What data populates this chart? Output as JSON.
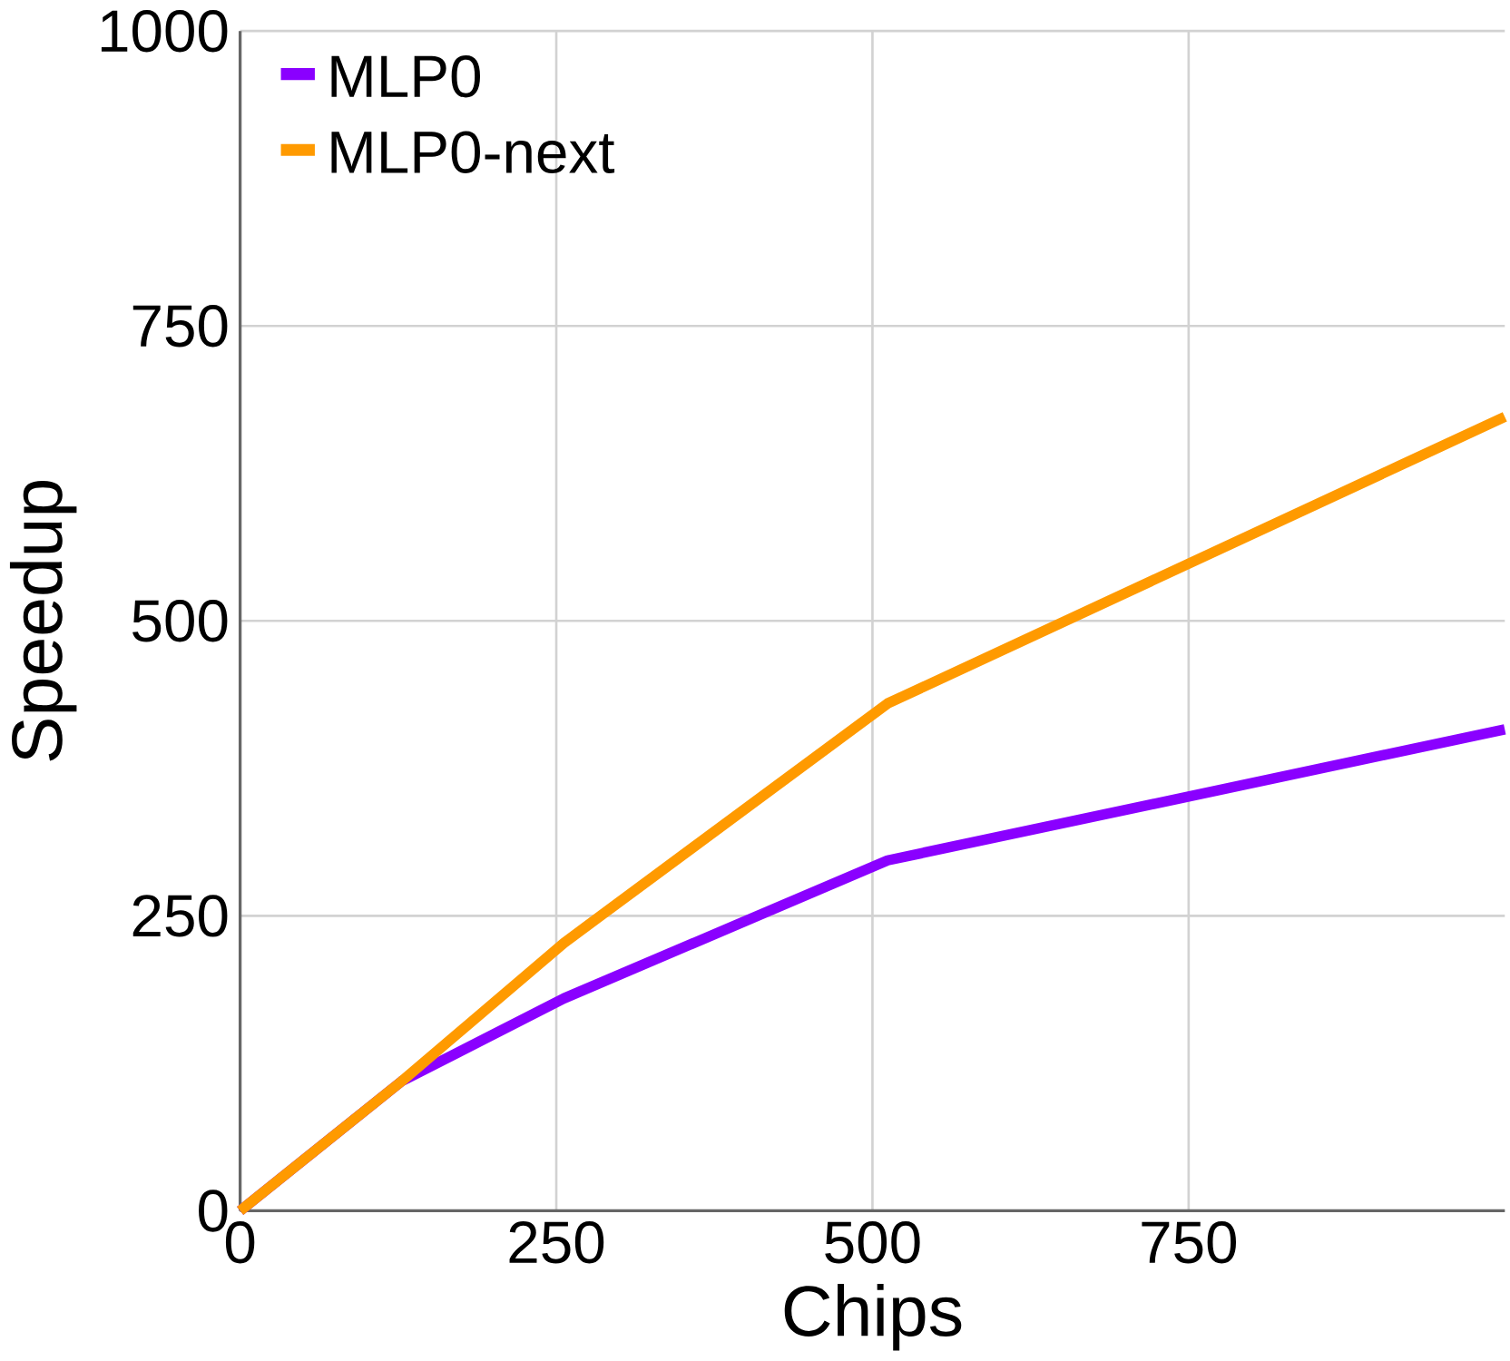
{
  "chart_data": {
    "type": "line",
    "xlabel": "Chips",
    "ylabel": "Speedup",
    "x": [
      0,
      128,
      256,
      512,
      1000
    ],
    "series": [
      {
        "name": "MLP0",
        "color": "#8a00ff",
        "values": [
          0,
          110,
          180,
          297,
          408
        ]
      },
      {
        "name": "MLP0-next",
        "color": "#ff9a00",
        "values": [
          0,
          110,
          227,
          430,
          673
        ]
      }
    ],
    "xlim": [
      0,
      1000
    ],
    "ylim": [
      0,
      1000
    ],
    "xticks": [
      0,
      250,
      500,
      750
    ],
    "yticks": [
      0,
      250,
      500,
      750,
      1000
    ],
    "grid": true,
    "legend": "top left",
    "marker": "none",
    "line_style": "solid"
  }
}
